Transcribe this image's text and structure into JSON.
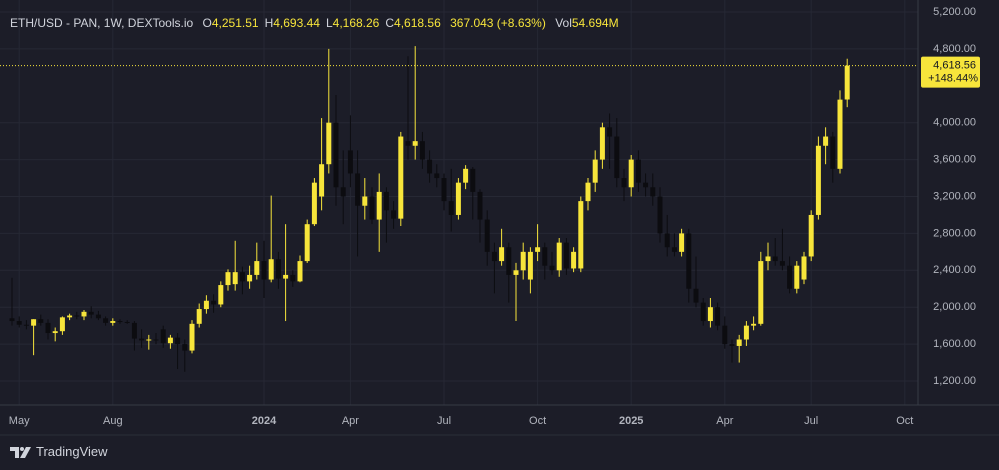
{
  "chart_data": {
    "type": "candlestick",
    "legend": {
      "symbol": "ETH/USD - PAN, 1W, DEXTools.io",
      "items": [
        {
          "key": "O",
          "value": "4,251.51"
        },
        {
          "key": "H",
          "value": "4,693.44"
        },
        {
          "key": "L",
          "value": "4,168.26"
        },
        {
          "key": "C",
          "value": "4,618.56"
        }
      ],
      "change": "367.043 (+8.63%)",
      "volume_key": "Vol",
      "volume": "54.694M"
    },
    "last_price": {
      "value": 4618.56,
      "label": "4,618.56"
    },
    "change_label": "+148.44%",
    "branding": "TradingView",
    "up_color": "#f7e53b",
    "down_color": "#0c0c10",
    "grid": true,
    "categories": [
      null,
      "May",
      null,
      null,
      null,
      null,
      null,
      null,
      null,
      null,
      null,
      null,
      null,
      null,
      "Aug",
      null,
      null,
      null,
      null,
      null,
      null,
      null,
      null,
      null,
      null,
      null,
      null,
      null,
      null,
      null,
      null,
      null,
      null,
      null,
      null,
      "2024",
      null,
      null,
      null,
      null,
      null,
      null,
      null,
      null,
      null,
      null,
      null,
      "Apr",
      null,
      null,
      null,
      null,
      null,
      null,
      null,
      null,
      null,
      null,
      null,
      null,
      "Jul",
      null,
      null,
      null,
      null,
      null,
      null,
      null,
      null,
      null,
      null,
      null,
      null,
      "Oct",
      null,
      null,
      null,
      null,
      null,
      null,
      null,
      null,
      null,
      null,
      null,
      null,
      "2025",
      null,
      null,
      null,
      null,
      null,
      null,
      null,
      null,
      null,
      null,
      null,
      null,
      "Apr",
      null,
      null,
      null,
      null,
      null,
      null,
      null,
      null,
      null,
      null,
      null,
      "Jul",
      null,
      null,
      null,
      null,
      null,
      null,
      null,
      null,
      null,
      null,
      null,
      null,
      "Oct"
    ],
    "open": [
      1880,
      1850,
      1810,
      1800,
      1870,
      1830,
      1720,
      1740,
      1890,
      1910,
      1900,
      1950,
      1920,
      1880,
      1830,
      1850,
      1840,
      1830,
      1660,
      1640,
      1650,
      1760,
      1610,
      1670,
      1600,
      1530,
      1820,
      1980,
      2070,
      2030,
      2240,
      2250,
      2380,
      2280,
      2350,
      2500,
      2300,
      2520,
      2310,
      2350,
      2280,
      2500,
      2900,
      3200,
      3550,
      4000,
      3300,
      3700,
      3450,
      3100,
      3200,
      2950,
      3250,
      3050,
      2960,
      3800,
      3750,
      3800,
      3600,
      3450,
      3400,
      3150,
      3000,
      3350,
      3500,
      3250,
      2950,
      2600,
      2500,
      2650,
      2350,
      2400,
      2300,
      2600,
      2650,
      2450,
      2400,
      2700,
      2420,
      2420,
      3150,
      3350,
      3600,
      3950,
      3850,
      3400,
      3300,
      3600,
      3350,
      3300,
      3200,
      2800,
      2650,
      2600,
      2800,
      2200,
      2050,
      1850,
      2000,
      1800,
      1600,
      1580,
      1650,
      1800,
      1820,
      2500,
      2550,
      2500,
      2450,
      2200,
      2300,
      2550,
      3000,
      3750,
      3850,
      3500,
      4251.51,
      null,
      null,
      null,
      null,
      null,
      null,
      null,
      null
    ],
    "high": [
      2320,
      1900,
      1860,
      1870,
      1920,
      1870,
      1780,
      1900,
      1930,
      1950,
      1970,
      2010,
      1960,
      1900,
      1880,
      1870,
      1860,
      1850,
      1760,
      1700,
      1720,
      1800,
      1700,
      1720,
      1650,
      1860,
      2040,
      2130,
      2140,
      2280,
      2410,
      2720,
      2440,
      2450,
      2700,
      2720,
      3210,
      2600,
      2900,
      2400,
      2560,
      2950,
      3400,
      4050,
      4800,
      4300,
      3700,
      4080,
      3700,
      3400,
      3300,
      3450,
      3300,
      3150,
      3900,
      4720,
      4830,
      3900,
      3700,
      3550,
      3450,
      3500,
      3400,
      3540,
      3520,
      3280,
      3050,
      2700,
      2850,
      2700,
      2480,
      2700,
      2650,
      2900,
      2700,
      2600,
      2750,
      2750,
      2650,
      3200,
      3400,
      3700,
      4000,
      4100,
      4050,
      3500,
      3650,
      3700,
      3450,
      3450,
      3300,
      3000,
      2800,
      2850,
      2850,
      2550,
      2100,
      2100,
      2050,
      1900,
      1650,
      1700,
      1850,
      1900,
      2600,
      2700,
      2750,
      2850,
      2550,
      2500,
      2600,
      3050,
      3850,
      3950,
      3900,
      4350,
      4693.44,
      null,
      null,
      null,
      null,
      null,
      null,
      null,
      null
    ],
    "low": [
      1800,
      1780,
      1760,
      1480,
      1800,
      1650,
      1630,
      1700,
      1860,
      1870,
      1860,
      1880,
      1860,
      1800,
      1800,
      1820,
      1820,
      1530,
      1560,
      1540,
      1600,
      1560,
      1550,
      1330,
      1300,
      1500,
      1780,
      1930,
      1940,
      2000,
      2180,
      2180,
      2140,
      2200,
      2300,
      2100,
      2270,
      2200,
      1850,
      2220,
      2270,
      2480,
      2880,
      3050,
      3450,
      3100,
      2900,
      3300,
      2550,
      2950,
      2900,
      2600,
      2700,
      2850,
      2880,
      3600,
      3600,
      3500,
      3350,
      3300,
      3050,
      2820,
      2950,
      3280,
      2950,
      2700,
      2450,
      2150,
      2450,
      2050,
      1850,
      2300,
      2150,
      2500,
      2300,
      2350,
      2330,
      2350,
      2380,
      2380,
      3050,
      3250,
      3500,
      3500,
      3300,
      3150,
      3200,
      3250,
      3200,
      3100,
      2700,
      2550,
      2550,
      2550,
      2050,
      2000,
      1800,
      1780,
      1750,
      1550,
      1400,
      1400,
      1580,
      1750,
      1800,
      2400,
      2450,
      2400,
      2150,
      2150,
      2250,
      2500,
      2950,
      3550,
      3350,
      3450,
      4168.26,
      null,
      null,
      null,
      null,
      null,
      null,
      null,
      null
    ],
    "close": [
      1850,
      1810,
      1800,
      1870,
      1830,
      1720,
      1740,
      1890,
      1910,
      1900,
      1950,
      1920,
      1880,
      1830,
      1850,
      1840,
      1830,
      1660,
      1640,
      1650,
      1640,
      1610,
      1670,
      1600,
      1530,
      1820,
      1980,
      2070,
      2030,
      2240,
      2380,
      2380,
      2280,
      2350,
      2500,
      2300,
      2520,
      2310,
      2350,
      2280,
      2500,
      2900,
      3350,
      3550,
      4000,
      3300,
      3200,
      3450,
      3100,
      3200,
      2950,
      3250,
      3050,
      2960,
      3850,
      3750,
      3800,
      3600,
      3450,
      3400,
      3150,
      3000,
      3350,
      3500,
      3250,
      2950,
      2600,
      2500,
      2650,
      2350,
      2400,
      2600,
      2600,
      2650,
      2450,
      2400,
      2700,
      2420,
      2600,
      3150,
      3350,
      3600,
      3950,
      3850,
      3400,
      3300,
      3600,
      3350,
      3300,
      3200,
      2800,
      2650,
      2600,
      2800,
      2200,
      2050,
      1850,
      2000,
      1800,
      1600,
      1580,
      1650,
      1800,
      1820,
      2500,
      2550,
      2500,
      2450,
      2200,
      2450,
      2550,
      3000,
      3750,
      3850,
      3500,
      4250,
      4618.56,
      null,
      null,
      null,
      null,
      null,
      null,
      null,
      null
    ],
    "ylim": [
      940,
      5330
    ],
    "yticks": [
      {
        "value": 1200,
        "label": "1,200.00"
      },
      {
        "value": 1600,
        "label": "1,600.00"
      },
      {
        "value": 2000,
        "label": "2,000.00"
      },
      {
        "value": 2400,
        "label": "2,400.00"
      },
      {
        "value": 2800,
        "label": "2,800.00"
      },
      {
        "value": 3200,
        "label": "3,200.00"
      },
      {
        "value": 3600,
        "label": "3,600.00"
      },
      {
        "value": 4000,
        "label": "4,000.00"
      },
      {
        "value": 4800,
        "label": "4,800.00"
      },
      {
        "value": 5200,
        "label": "5,200.00"
      }
    ]
  }
}
